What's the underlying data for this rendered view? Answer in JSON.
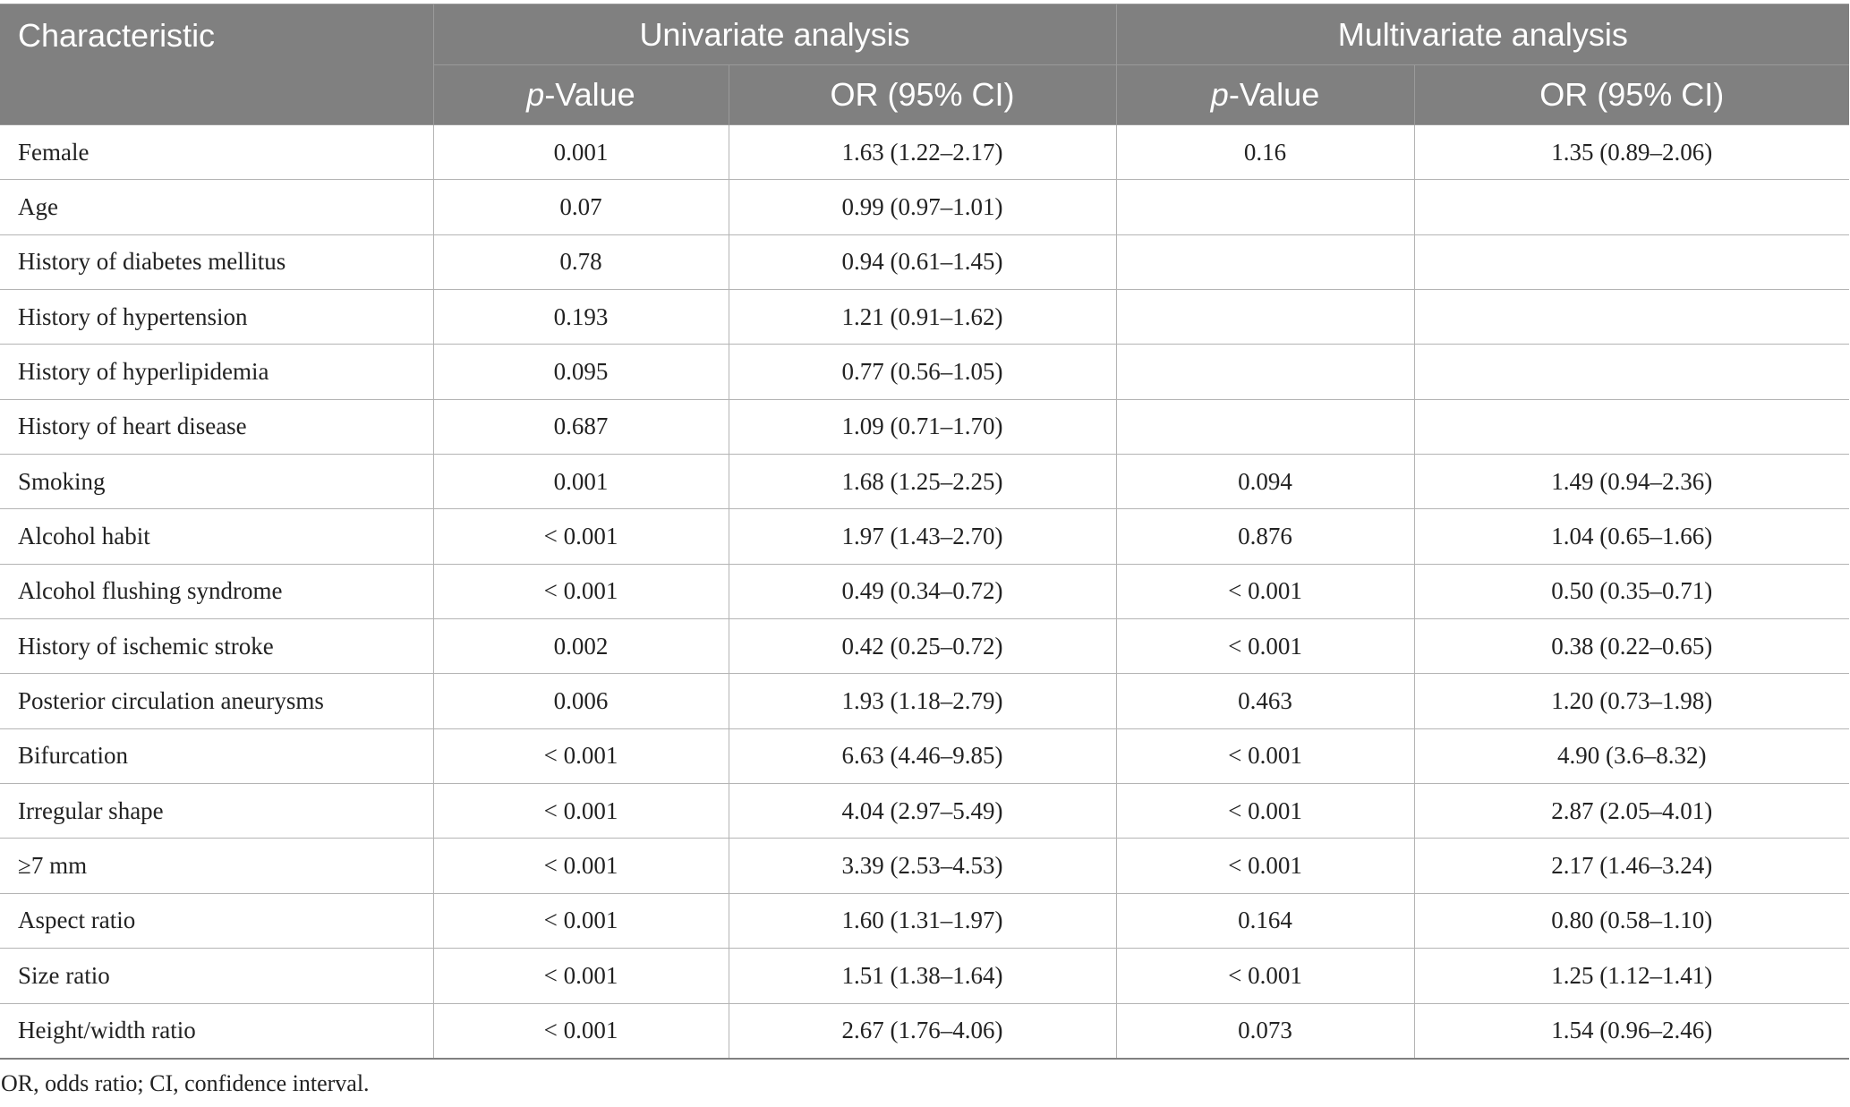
{
  "header": {
    "characteristic": "Characteristic",
    "univariate": "Univariate analysis",
    "multivariate": "Multivariate analysis",
    "pvalue_italic": "p",
    "pvalue_rest": "-Value",
    "or_ci": "OR (95% CI)"
  },
  "rows": [
    {
      "label": "Female",
      "uni_p": "0.001",
      "uni_or": "1.63 (1.22–2.17)",
      "multi_p": "0.16",
      "multi_or": "1.35 (0.89–2.06)"
    },
    {
      "label": "Age",
      "uni_p": "0.07",
      "uni_or": "0.99 (0.97–1.01)",
      "multi_p": "",
      "multi_or": ""
    },
    {
      "label": "History of diabetes mellitus",
      "uni_p": "0.78",
      "uni_or": "0.94 (0.61–1.45)",
      "multi_p": "",
      "multi_or": ""
    },
    {
      "label": "History of hypertension",
      "uni_p": "0.193",
      "uni_or": "1.21 (0.91–1.62)",
      "multi_p": "",
      "multi_or": ""
    },
    {
      "label": "History of hyperlipidemia",
      "uni_p": "0.095",
      "uni_or": "0.77 (0.56–1.05)",
      "multi_p": "",
      "multi_or": ""
    },
    {
      "label": "History of heart disease",
      "uni_p": "0.687",
      "uni_or": "1.09 (0.71–1.70)",
      "multi_p": "",
      "multi_or": ""
    },
    {
      "label": "Smoking",
      "uni_p": "0.001",
      "uni_or": "1.68 (1.25–2.25)",
      "multi_p": "0.094",
      "multi_or": "1.49 (0.94–2.36)"
    },
    {
      "label": "Alcohol habit",
      "uni_p": "< 0.001",
      "uni_or": "1.97 (1.43–2.70)",
      "multi_p": "0.876",
      "multi_or": "1.04 (0.65–1.66)"
    },
    {
      "label": "Alcohol flushing syndrome",
      "uni_p": "< 0.001",
      "uni_or": "0.49 (0.34–0.72)",
      "multi_p": "< 0.001",
      "multi_or": "0.50 (0.35–0.71)"
    },
    {
      "label": "History of ischemic stroke",
      "uni_p": "0.002",
      "uni_or": "0.42 (0.25–0.72)",
      "multi_p": "< 0.001",
      "multi_or": "0.38 (0.22–0.65)"
    },
    {
      "label": "Posterior circulation aneurysms",
      "uni_p": "0.006",
      "uni_or": "1.93 (1.18–2.79)",
      "multi_p": "0.463",
      "multi_or": "1.20 (0.73–1.98)"
    },
    {
      "label": "Bifurcation",
      "uni_p": "< 0.001",
      "uni_or": "6.63 (4.46–9.85)",
      "multi_p": "< 0.001",
      "multi_or": "4.90 (3.6–8.32)"
    },
    {
      "label": "Irregular shape",
      "uni_p": "< 0.001",
      "uni_or": "4.04 (2.97–5.49)",
      "multi_p": "< 0.001",
      "multi_or": "2.87 (2.05–4.01)"
    },
    {
      "label": "≥7 mm",
      "uni_p": "< 0.001",
      "uni_or": "3.39 (2.53–4.53)",
      "multi_p": "< 0.001",
      "multi_or": "2.17 (1.46–3.24)"
    },
    {
      "label": "Aspect ratio",
      "uni_p": "< 0.001",
      "uni_or": "1.60 (1.31–1.97)",
      "multi_p": "0.164",
      "multi_or": "0.80 (0.58–1.10)"
    },
    {
      "label": "Size ratio",
      "uni_p": "< 0.001",
      "uni_or": "1.51 (1.38–1.64)",
      "multi_p": "< 0.001",
      "multi_or": "1.25 (1.12–1.41)"
    },
    {
      "label": "Height/width ratio",
      "uni_p": "< 0.001",
      "uni_or": "2.67 (1.76–4.06)",
      "multi_p": "0.073",
      "multi_or": "1.54 (0.96–2.46)"
    }
  ],
  "footnote": "OR, odds ratio; CI, confidence interval.",
  "colors": {
    "header_bg": "#808080",
    "header_text": "#ffffff",
    "grid": "#b4b4b4"
  }
}
